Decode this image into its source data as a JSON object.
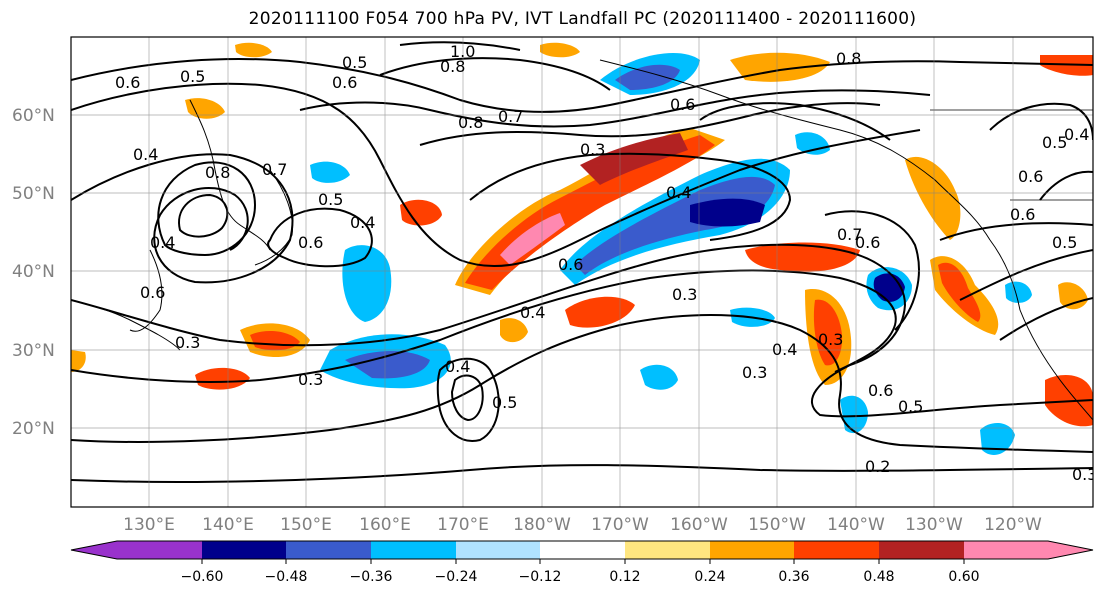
{
  "title": "2020111100 F054 700 hPa PV, IVT Landfall PC (2020111400 - 2020111600)",
  "latitude_labels": [
    "60°N",
    "50°N",
    "40°N",
    "30°N",
    "20°N"
  ],
  "longitude_labels": [
    "130°E",
    "140°E",
    "150°E",
    "160°E",
    "170°E",
    "180°W",
    "170°W",
    "160°W",
    "150°W",
    "140°W",
    "130°W",
    "120°W"
  ],
  "contour_labels": [
    "0.6",
    "0.5",
    "0.5",
    "1.0",
    "0.6",
    "0.8",
    "0.7",
    "0.8",
    "0.6",
    "0.4",
    "0.8",
    "0.7",
    "0.5",
    "0.4",
    "0.6",
    "0.7",
    "0.6",
    "0.4",
    "0.6",
    "0.4",
    "0.3",
    "0.6",
    "0.4",
    "0.3",
    "0.3",
    "0.3",
    "0.4",
    "0.5",
    "0.3",
    "0.4",
    "0.3",
    "0.6",
    "0.5",
    "0.2",
    "0.3",
    "0.8",
    "0.5",
    "0.6",
    "0.4",
    "0.6",
    "0.5"
  ],
  "colorbar": {
    "ticks": [
      "−0.60",
      "−0.48",
      "−0.36",
      "−0.24",
      "−0.12",
      "0.12",
      "0.24",
      "0.36",
      "0.48",
      "0.60"
    ],
    "colors": [
      "#9932cc",
      "#00008b",
      "#3a5bcc",
      "#00bfff",
      "#b0e2ff",
      "#ffffff",
      "#ffe680",
      "#ffa500",
      "#ff4000",
      "#b22222",
      "#ff88b0"
    ]
  },
  "shading_colors": {
    "neg_strong": "#00008b",
    "neg_mid": "#3a5bcc",
    "neg_light": "#00bfff",
    "neg_faint": "#b0e2ff",
    "pos_faint": "#ffe680",
    "pos_light": "#ffa500",
    "pos_mid": "#ff4000",
    "pos_strong": "#b22222",
    "pos_max": "#ff88b0"
  }
}
